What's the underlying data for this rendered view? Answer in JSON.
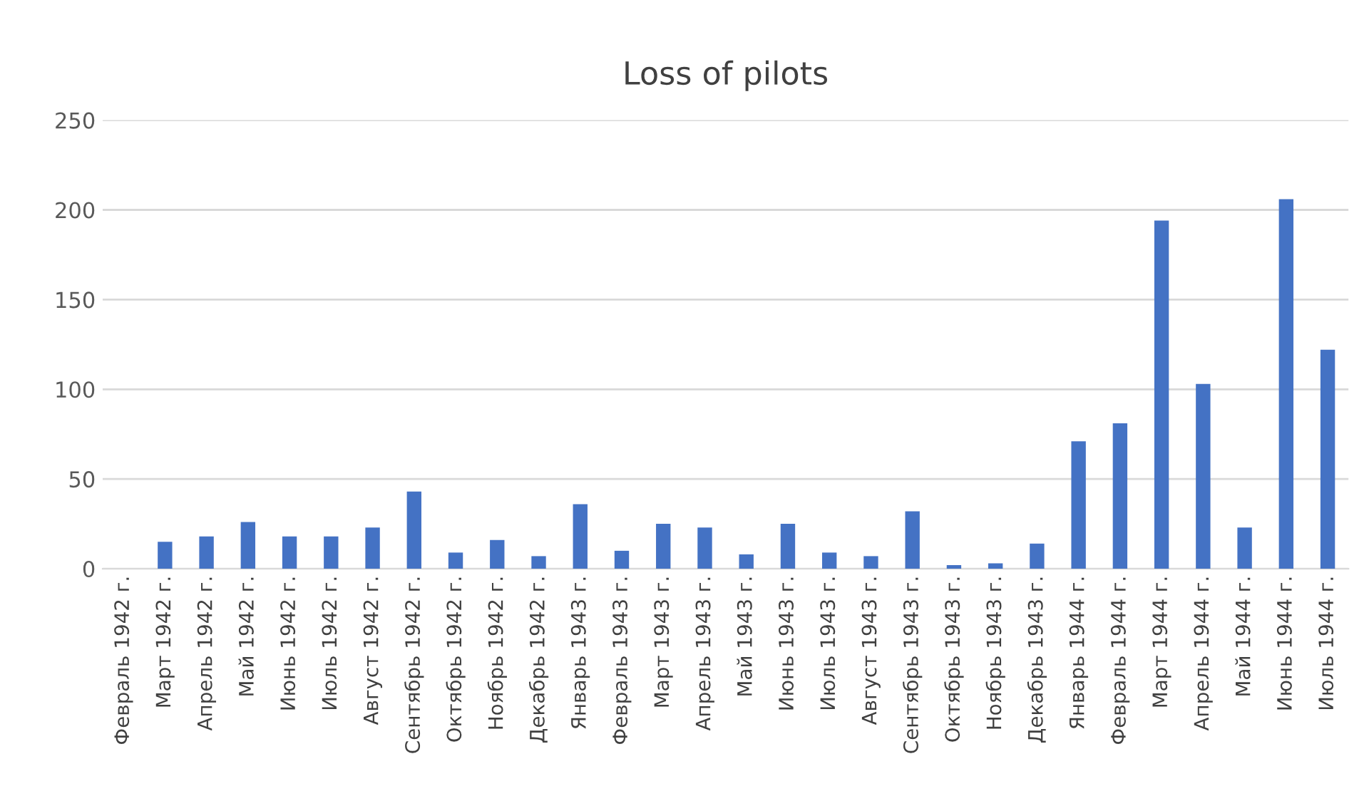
{
  "chart_data": {
    "type": "bar",
    "title": "Loss of pilots",
    "categories": [
      "Февраль 1942 г.",
      "Март 1942 г.",
      "Апрель 1942 г.",
      "Май 1942 г.",
      "Июнь 1942 г.",
      "Июль 1942 г.",
      "Август 1942 г.",
      "Сентябрь 1942 г.",
      "Октябрь 1942 г.",
      "Ноябрь 1942 г.",
      "Декабрь 1942 г.",
      "Январь 1943 г.",
      "Февраль 1943 г.",
      "Март 1943 г.",
      "Апрель 1943 г.",
      "Май 1943 г.",
      "Июнь 1943 г.",
      "Июль 1943 г.",
      "Август 1943 г.",
      "Сентябрь 1943 г.",
      "Октябрь 1943 г.",
      "Ноябрь 1943 г.",
      "Декабрь 1943 г.",
      "Январь 1944 г.",
      "Февраль 1944 г.",
      "Март 1944 г.",
      "Апрель 1944 г.",
      "Май 1944 г.",
      "Июнь 1944 г.",
      "Июль 1944 г."
    ],
    "values": [
      0,
      15,
      18,
      26,
      18,
      18,
      23,
      43,
      9,
      16,
      7,
      36,
      10,
      25,
      23,
      8,
      25,
      9,
      7,
      32,
      2,
      3,
      14,
      71,
      81,
      194,
      103,
      23,
      206,
      122
    ],
    "color": "#4472c4",
    "ylim": [
      0,
      250
    ],
    "yticks": [
      0,
      50,
      100,
      150,
      200,
      250
    ],
    "grid": "y",
    "legend": false
  }
}
